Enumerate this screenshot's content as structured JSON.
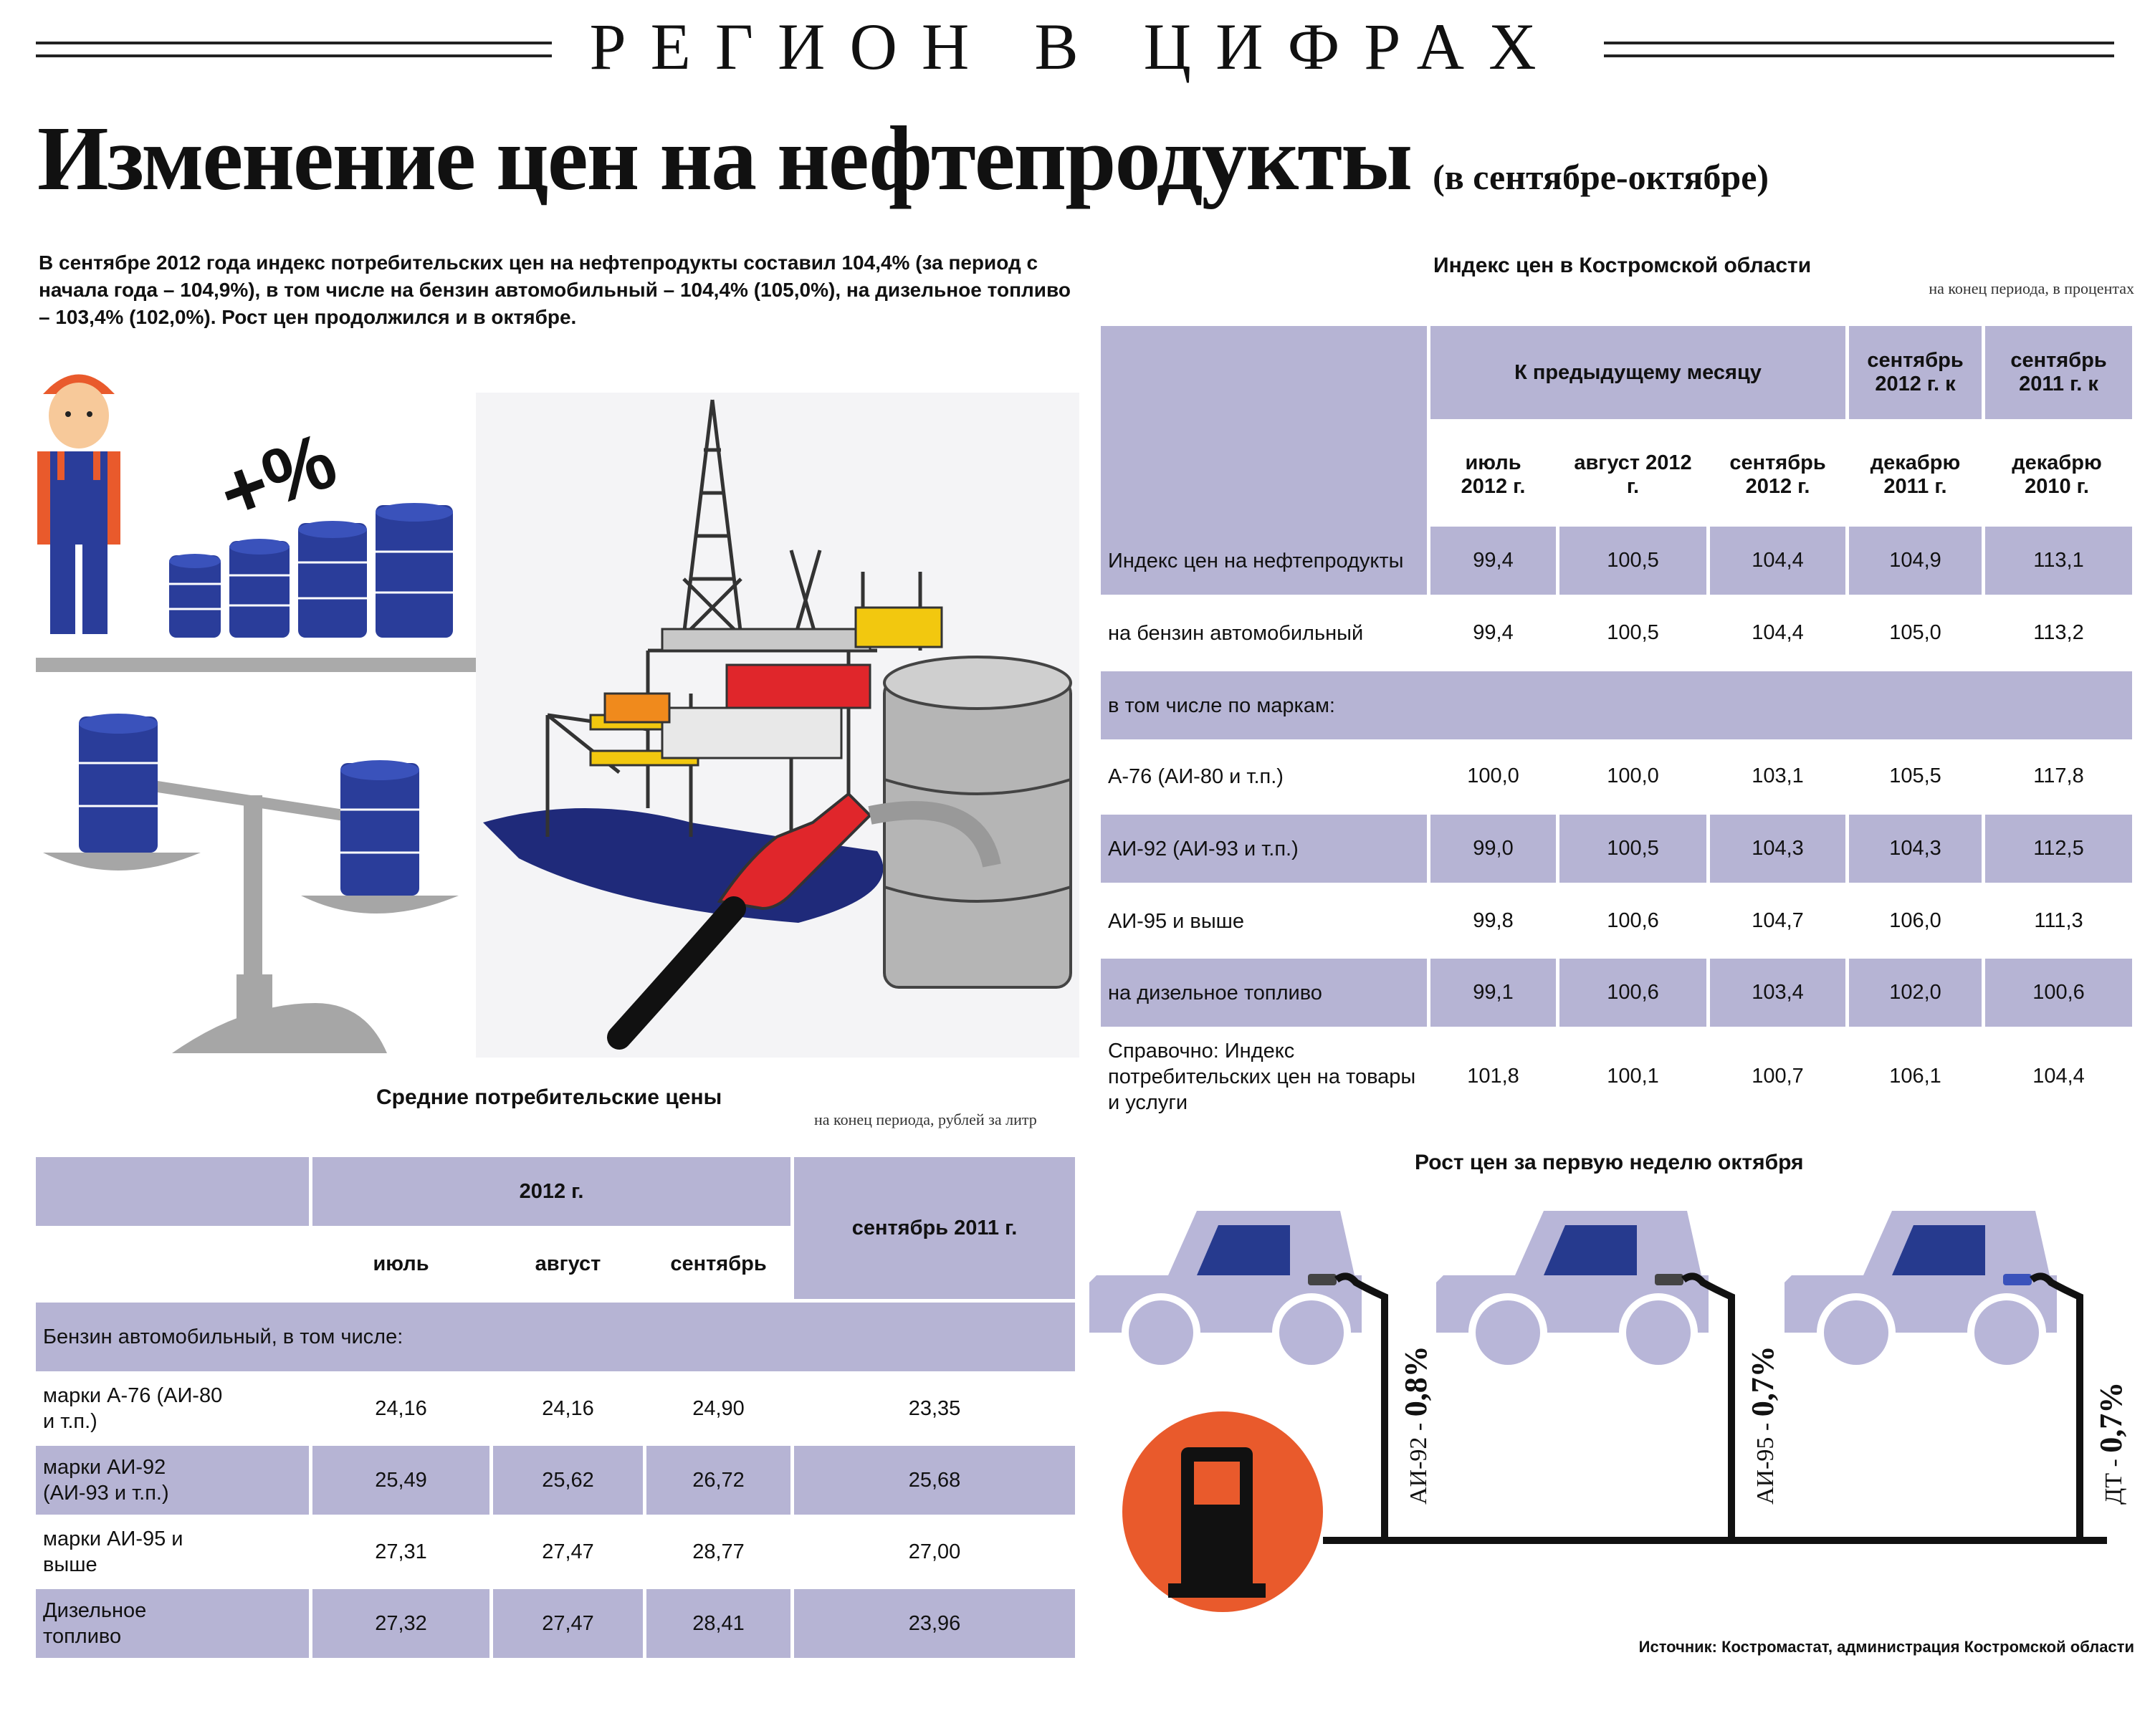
{
  "header": {
    "region_title": "РЕГИОН В ЦИФРАХ"
  },
  "title": {
    "main": "Изменение цен на нефтепродукты",
    "sub": "(в сентябре-октябре)"
  },
  "intro": "В сентябре 2012 года индекс потребительских цен на нефтепродукты составил 104,4% (за период с начала года – 104,9%), в том числе  на бензин автомобильный – 104,4% (105,0%), на дизельное топливо – 103,4% (102,0%). Рост цен продолжился и в октябре.",
  "illustration": {
    "percent_sign": "+%"
  },
  "index_table": {
    "title": "Индекс цен в Костромской области",
    "unit": "на конец периода, в процентах",
    "header_group": "К предыдущему месяцу",
    "col_sep2012": "сентябрь 2012 г. к",
    "col_sep2011": "сентябрь 2011 г. к",
    "cols": [
      "июль 2012 г.",
      "август 2012 г.",
      "сентябрь 2012 г.",
      "декабрю 2011 г.",
      "декабрю 2010 г."
    ],
    "rows": [
      {
        "label": "Индекс цен на нефтепродукты",
        "values": [
          "99,4",
          "100,5",
          "104,4",
          "104,9",
          "113,1"
        ]
      },
      {
        "label": "на бензин автомобильный",
        "values": [
          "99,4",
          "100,5",
          "104,4",
          "105,0",
          "113,2"
        ]
      },
      {
        "label": "в том числе по маркам:",
        "values": []
      },
      {
        "label": "А-76 (АИ-80 и т.п.)",
        "values": [
          "100,0",
          "100,0",
          "103,1",
          "105,5",
          "117,8"
        ]
      },
      {
        "label": "АИ-92 (АИ-93 и т.п.)",
        "values": [
          "99,0",
          "100,5",
          "104,3",
          "104,3",
          "112,5"
        ]
      },
      {
        "label": "АИ-95 и выше",
        "values": [
          "99,8",
          "100,6",
          "104,7",
          "106,0",
          "111,3"
        ]
      },
      {
        "label": "на дизельное топливо",
        "values": [
          "99,1",
          "100,6",
          "103,4",
          "102,0",
          "100,6"
        ]
      },
      {
        "label": "Справочно: Индекс потребительских цен на товары и услуги",
        "values": [
          "101,8",
          "100,1",
          "100,7",
          "106,1",
          "104,4"
        ]
      }
    ]
  },
  "price_table": {
    "title": "Средние потребительские цены",
    "unit": "на конец периода, рублей за литр",
    "header_group": "2012 г.",
    "col_prev": "сентябрь 2011 г.",
    "cols": [
      "июль",
      "август",
      "сентябрь"
    ],
    "rows": [
      {
        "label": "Бензин автомобильный, в том числе:",
        "values": []
      },
      {
        "label": "марки А-76 (АИ-80 и т.п.)",
        "values": [
          "24,16",
          "24,16",
          "24,90",
          "23,35"
        ]
      },
      {
        "label": "марки АИ-92 (АИ-93 и т.п.)",
        "values": [
          "25,49",
          "25,62",
          "26,72",
          "25,68"
        ]
      },
      {
        "label": "марки АИ-95 и выше",
        "values": [
          "27,31",
          "27,47",
          "28,77",
          "27,00"
        ]
      },
      {
        "label": "Дизельное топливо",
        "values": [
          "27,32",
          "27,47",
          "28,41",
          "23,96"
        ]
      }
    ]
  },
  "weekly": {
    "title": "Рост цен за первую неделю октября",
    "items": [
      {
        "fuel": "АИ-92 -",
        "value": "0,8%"
      },
      {
        "fuel": "АИ-95 -",
        "value": "0,7%"
      },
      {
        "fuel": "ДТ -",
        "value": "0,7%"
      }
    ]
  },
  "source": "Источник: Костромастат, администрация Костромской области",
  "colors": {
    "band": "#b6b4d4",
    "barrel": "#2a3d9a",
    "orange": "#e95a2c",
    "car": "#b8b6d8"
  }
}
